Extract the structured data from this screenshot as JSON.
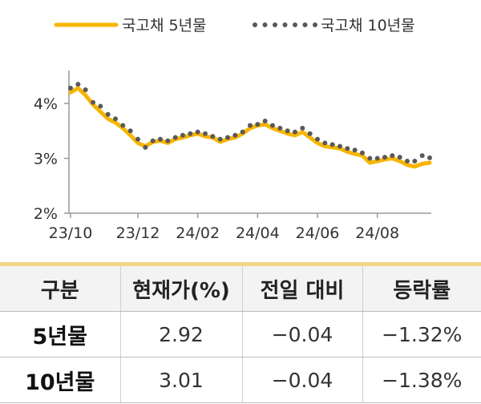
{
  "colors": {
    "series5": "#f7b500",
    "series10": "#595959",
    "axis": "#999999"
  },
  "table": {
    "headers": [
      "구분",
      "현재가(%)",
      "전일 대비",
      "등락률"
    ],
    "rows": [
      [
        "5년물",
        "2.92",
        "−0.04",
        "−1.32%"
      ],
      [
        "10년물",
        "3.01",
        "−0.04",
        "−1.38%"
      ]
    ]
  },
  "chart_data": {
    "type": "line",
    "x": [
      "23/10",
      "23/10",
      "23/10",
      "23/10",
      "23/10",
      "23/11",
      "23/11",
      "23/11",
      "23/11",
      "23/12",
      "23/12",
      "23/12",
      "23/12",
      "24/01",
      "24/01",
      "24/01",
      "24/01",
      "24/02",
      "24/02",
      "24/02",
      "24/02",
      "24/03",
      "24/03",
      "24/03",
      "24/03",
      "24/04",
      "24/04",
      "24/04",
      "24/04",
      "24/05",
      "24/05",
      "24/05",
      "24/05",
      "24/06",
      "24/06",
      "24/06",
      "24/06",
      "24/07",
      "24/07",
      "24/07",
      "24/07",
      "24/08",
      "24/08",
      "24/08",
      "24/08",
      "24/09",
      "24/09",
      "24/09",
      "24/09"
    ],
    "series": [
      {
        "name": "국고채 5년물",
        "values": [
          4.2,
          4.28,
          4.15,
          3.98,
          3.85,
          3.72,
          3.65,
          3.55,
          3.42,
          3.28,
          3.22,
          3.3,
          3.32,
          3.28,
          3.35,
          3.38,
          3.42,
          3.45,
          3.4,
          3.38,
          3.3,
          3.35,
          3.38,
          3.45,
          3.55,
          3.6,
          3.62,
          3.55,
          3.5,
          3.45,
          3.42,
          3.48,
          3.38,
          3.28,
          3.22,
          3.2,
          3.18,
          3.12,
          3.08,
          3.05,
          2.92,
          2.95,
          2.98,
          3.0,
          2.95,
          2.88,
          2.85,
          2.9,
          2.92
        ]
      },
      {
        "name": "국고채 10년물",
        "values": [
          4.28,
          4.35,
          4.25,
          4.02,
          3.95,
          3.8,
          3.72,
          3.6,
          3.5,
          3.35,
          3.2,
          3.32,
          3.35,
          3.32,
          3.38,
          3.42,
          3.45,
          3.48,
          3.45,
          3.4,
          3.35,
          3.38,
          3.42,
          3.48,
          3.6,
          3.62,
          3.68,
          3.6,
          3.55,
          3.5,
          3.48,
          3.55,
          3.45,
          3.35,
          3.28,
          3.25,
          3.22,
          3.18,
          3.15,
          3.1,
          3.0,
          3.0,
          3.02,
          3.05,
          3.02,
          2.95,
          2.95,
          3.05,
          3.01
        ]
      }
    ],
    "x_ticks": [
      "23/10",
      "23/12",
      "24/02",
      "24/04",
      "24/06",
      "24/08"
    ],
    "y_ticks": [
      "2%",
      "3%",
      "4%"
    ],
    "ylim": [
      2,
      4.6
    ],
    "legend": "top",
    "grid": false
  }
}
